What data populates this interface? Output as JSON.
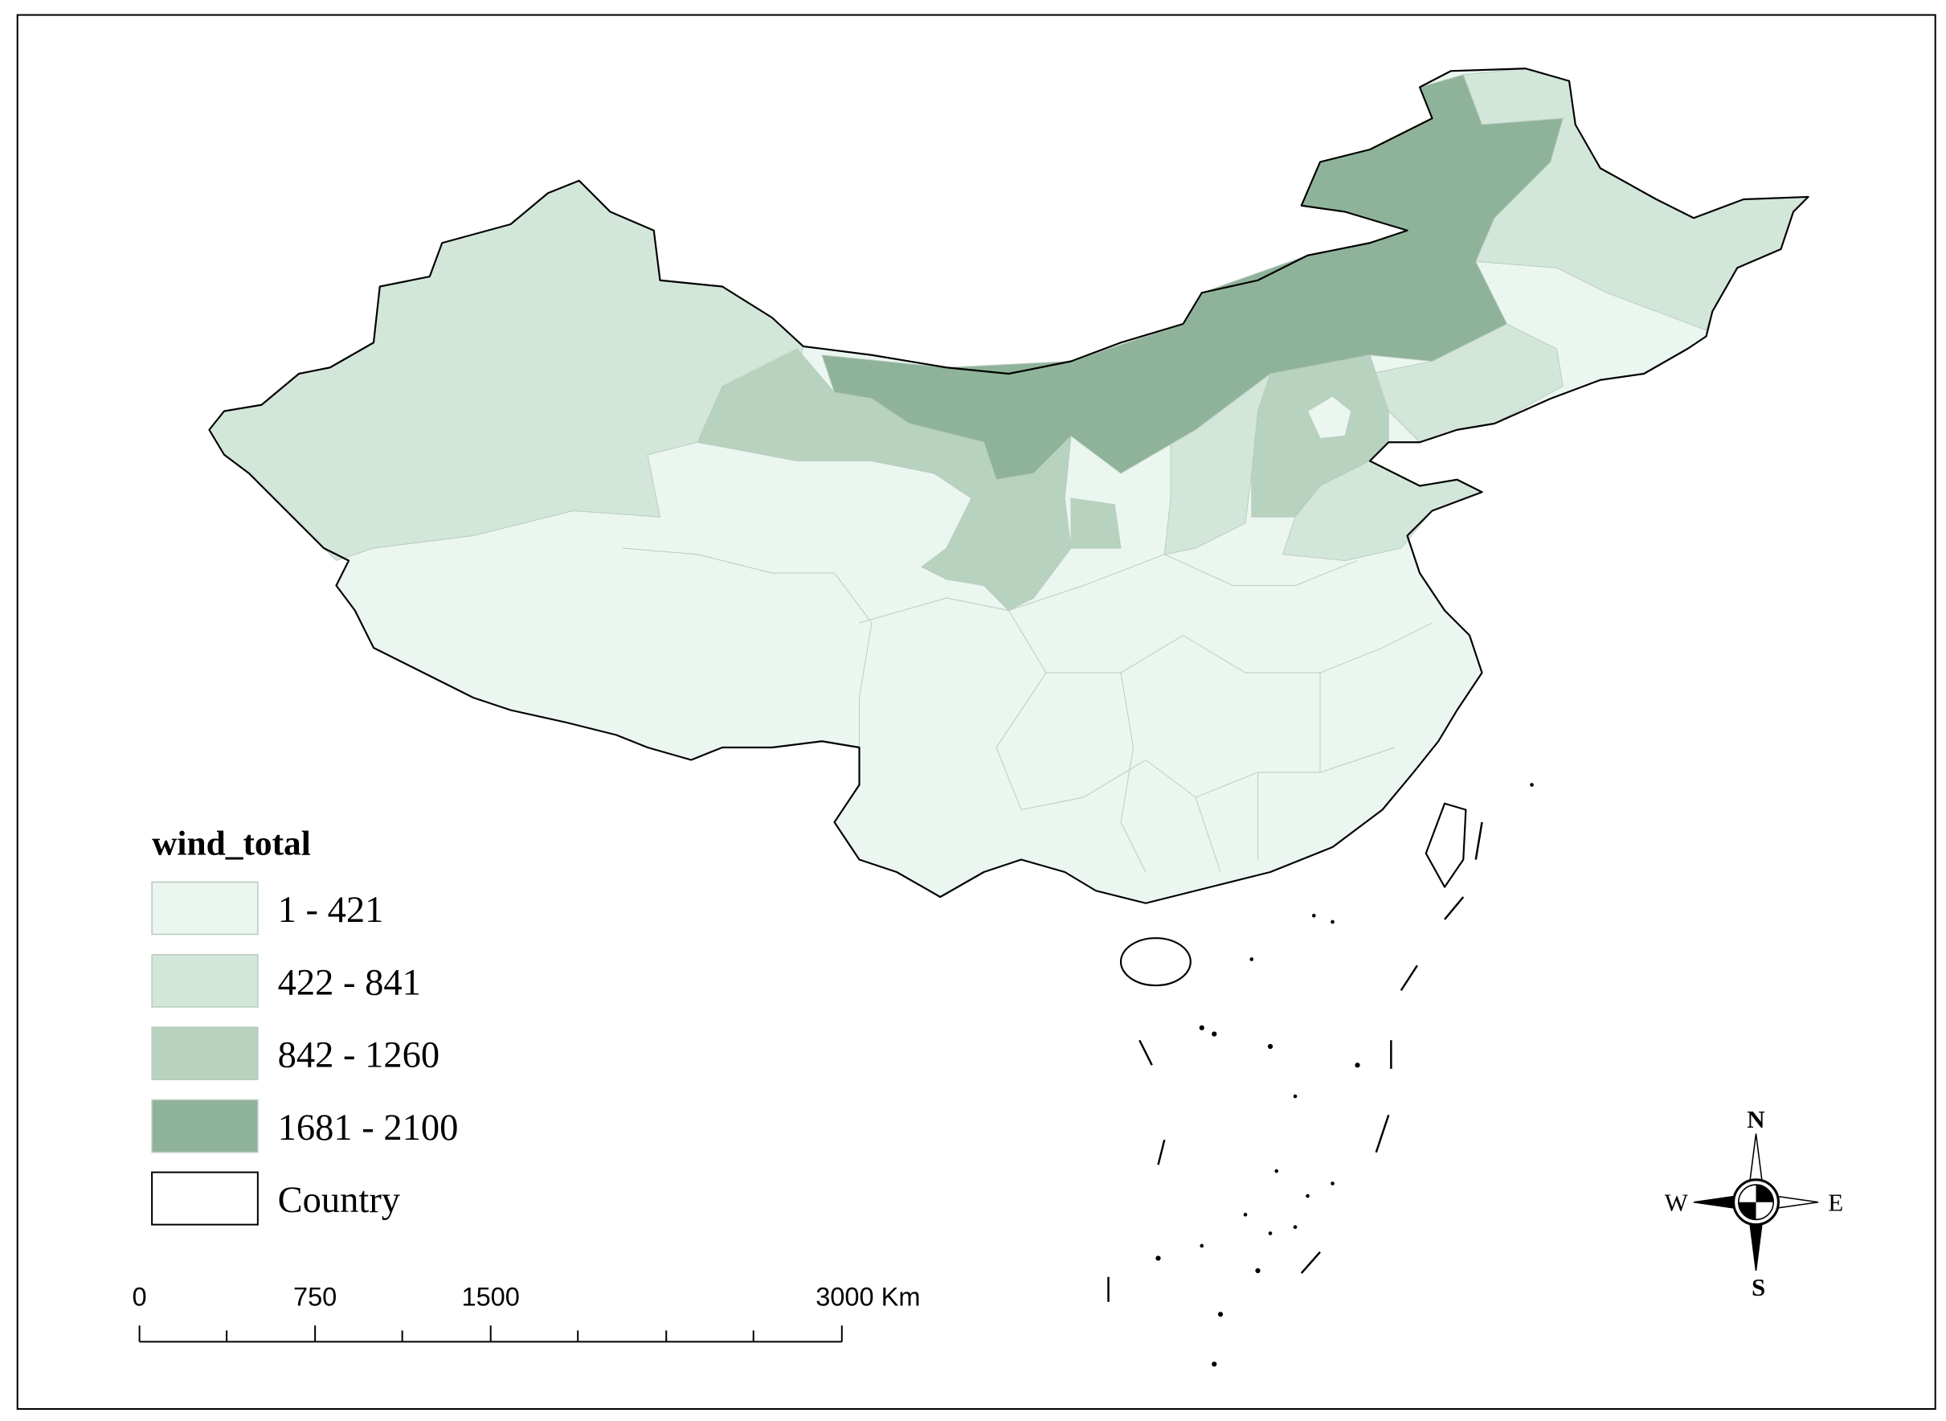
{
  "legend": {
    "title": "wind_total",
    "items": [
      {
        "label": "1 - 421",
        "color": "#eaf6ef"
      },
      {
        "label": "422 - 841",
        "color": "#d3e6da"
      },
      {
        "label": "842 - 1260",
        "color": "#b8d2c0"
      },
      {
        "label": "1681 - 2100",
        "color": "#8fb39a"
      }
    ],
    "country_label": "Country"
  },
  "scale_bar": {
    "labels": [
      "0",
      "750",
      "1500",
      "3000 Km"
    ]
  },
  "compass": {
    "n": "N",
    "s": "S",
    "w": "W",
    "e": "E"
  }
}
